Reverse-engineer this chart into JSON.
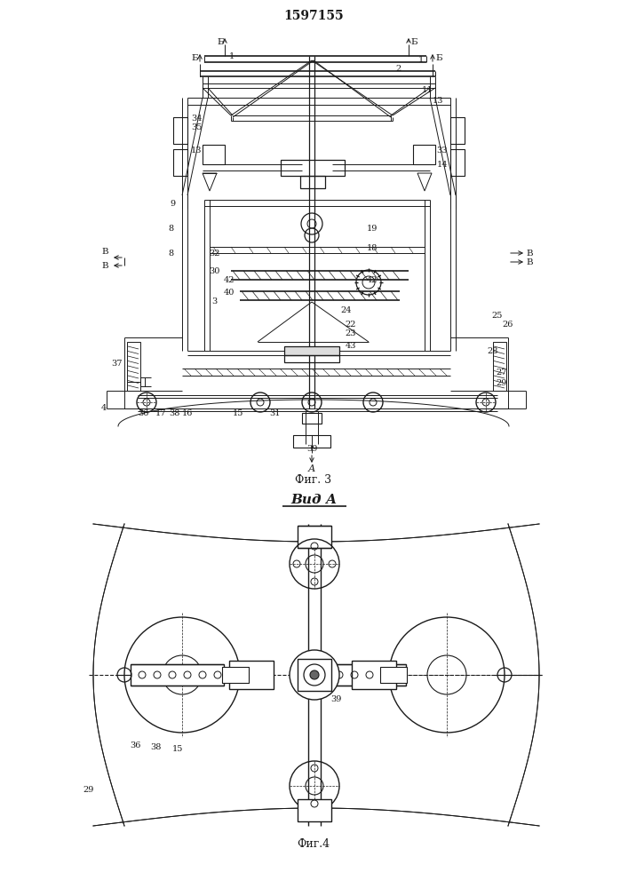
{
  "title": "1597155",
  "fig3_label": "Фиг. 3",
  "fig4_label": "Фиг.4",
  "vid_a_label": "Вид А",
  "bg_color": "#ffffff",
  "line_color": "#1a1a1a",
  "lw": 0.7
}
